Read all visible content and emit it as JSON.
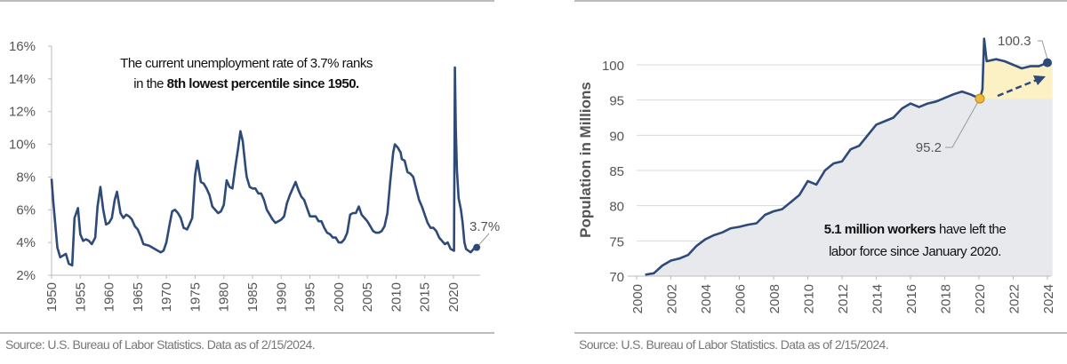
{
  "colors": {
    "line": "#2e4a78",
    "gray_fill": "#e8e9ed",
    "yellow_fill": "#fcf1c4",
    "marker_gold": "#f0b83a",
    "grid": "#d9d9d9"
  },
  "chart_data": [
    {
      "type": "line",
      "xlim": [
        1950,
        2024
      ],
      "ylim": [
        2,
        16
      ],
      "y_ticks": [
        "2%",
        "4%",
        "6%",
        "8%",
        "10%",
        "12%",
        "14%",
        "16%"
      ],
      "x_ticks": [
        "1950",
        "1955",
        "1960",
        "1965",
        "1970",
        "1975",
        "1980",
        "1985",
        "1990",
        "1995",
        "2000",
        "2005",
        "2010",
        "2015",
        "2020"
      ],
      "grid": false,
      "annotation_line1": "The current unemployment rate of 3.7% ranks",
      "annotation_line2_prefix": "in the ",
      "annotation_line2_bold": "8th lowest percentile since 1950.",
      "end_label": "3.7%",
      "x": [
        1950,
        1950.3,
        1951,
        1951.5,
        1952,
        1952.5,
        1953,
        1953.6,
        1954,
        1954.6,
        1955,
        1955.5,
        1956,
        1956.5,
        1957,
        1957.6,
        1958,
        1958.5,
        1959,
        1959.5,
        1960,
        1960.5,
        1961,
        1961.4,
        1962,
        1962.5,
        1963,
        1963.5,
        1964,
        1964.5,
        1965,
        1965.5,
        1966,
        1967,
        1968,
        1969,
        1969.5,
        1970,
        1970.5,
        1971,
        1971.5,
        1972,
        1972.5,
        1973,
        1973.6,
        1974,
        1974.5,
        1975,
        1975.4,
        1976,
        1976.5,
        1977,
        1977.5,
        1978,
        1979,
        1979.5,
        1980,
        1980.5,
        1981,
        1981.5,
        1982,
        1982.5,
        1982.9,
        1983.3,
        1983.8,
        1984,
        1984.5,
        1985,
        1985.5,
        1986,
        1986.5,
        1987,
        1987.5,
        1988,
        1988.5,
        1989,
        1989.5,
        1990,
        1990.5,
        1991,
        1991.5,
        1992,
        1992.5,
        1993,
        1993.5,
        1994,
        1994.5,
        1995,
        1995.5,
        1996,
        1996.5,
        1997,
        1997.5,
        1998,
        1998.5,
        1999,
        1999.5,
        2000,
        2000.5,
        2001,
        2001.5,
        2002,
        2002.5,
        2003,
        2003.5,
        2004,
        2004.5,
        2005,
        2005.5,
        2006,
        2006.5,
        2007,
        2007.5,
        2008,
        2008.5,
        2009,
        2009.5,
        2009.8,
        2010.3,
        2010.8,
        2011,
        2011.5,
        2012,
        2012.5,
        2013,
        2013.5,
        2014,
        2014.5,
        2015,
        2015.5,
        2016,
        2016.5,
        2017,
        2017.5,
        2018,
        2018.5,
        2019,
        2019.5,
        2020.1,
        2020.25,
        2020.4,
        2020.6,
        2020.9,
        2021.3,
        2021.6,
        2021.9,
        2022.2,
        2022.6,
        2023,
        2023.5,
        2023.9,
        2024.05
      ],
      "y": [
        7.9,
        6.5,
        3.7,
        3.1,
        3.2,
        3.3,
        2.7,
        2.6,
        5.5,
        6.1,
        4.5,
        4.1,
        4.2,
        4.1,
        3.9,
        4.3,
        6.2,
        7.4,
        6.0,
        5.1,
        5.2,
        5.5,
        6.6,
        7.1,
        5.8,
        5.5,
        5.7,
        5.6,
        5.4,
        5.0,
        4.8,
        4.4,
        3.9,
        3.8,
        3.6,
        3.4,
        3.5,
        4.0,
        5.0,
        5.9,
        6.0,
        5.8,
        5.5,
        4.9,
        4.8,
        5.1,
        5.5,
        8.1,
        9.0,
        7.7,
        7.6,
        7.3,
        6.9,
        6.2,
        5.8,
        5.9,
        6.3,
        7.8,
        7.4,
        7.3,
        8.6,
        9.8,
        10.8,
        10.2,
        8.5,
        8.0,
        7.4,
        7.3,
        7.3,
        7.0,
        7.0,
        6.6,
        6.0,
        5.7,
        5.4,
        5.2,
        5.3,
        5.4,
        5.6,
        6.4,
        6.9,
        7.3,
        7.7,
        7.2,
        6.8,
        6.6,
        6.1,
        5.6,
        5.6,
        5.6,
        5.3,
        5.3,
        4.9,
        4.6,
        4.5,
        4.3,
        4.3,
        4.0,
        4.0,
        4.2,
        4.6,
        5.7,
        5.8,
        5.8,
        6.2,
        5.7,
        5.5,
        5.3,
        5.0,
        4.7,
        4.6,
        4.6,
        4.7,
        5.0,
        5.8,
        7.8,
        9.5,
        10.0,
        9.8,
        9.5,
        9.1,
        9.0,
        8.3,
        8.2,
        8.0,
        7.3,
        6.6,
        6.2,
        5.7,
        5.2,
        4.9,
        4.9,
        4.7,
        4.3,
        4.1,
        3.9,
        4.0,
        3.6,
        3.5,
        14.7,
        11.0,
        8.4,
        6.7,
        6.0,
        5.2,
        4.0,
        3.6,
        3.5,
        3.4,
        3.6,
        3.7,
        3.7
      ]
    },
    {
      "type": "area",
      "ylabel": "Population in Millions",
      "xlim": [
        2000,
        2024
      ],
      "ylim": [
        70,
        103
      ],
      "y_ticks": [
        "70",
        "75",
        "80",
        "85",
        "90",
        "95",
        "100"
      ],
      "x_ticks": [
        "2000",
        "2002",
        "2004",
        "2006",
        "2008",
        "2010",
        "2012",
        "2014",
        "2016",
        "2018",
        "2020",
        "2022",
        "2024"
      ],
      "grid": true,
      "jan2020_label": "95.2",
      "latest_label": "100.3",
      "annotation_line1_bold": "5.1 million workers",
      "annotation_line1_rest": " have left the",
      "annotation_line2": "labor force since January 2020.",
      "x": [
        2000.5,
        2001,
        2001.5,
        2002,
        2002.5,
        2003,
        2003.5,
        2004,
        2004.5,
        2005,
        2005.5,
        2006,
        2006.5,
        2007,
        2007.5,
        2008,
        2008.5,
        2009,
        2009.5,
        2010,
        2010.5,
        2011,
        2011.5,
        2012,
        2012.5,
        2013,
        2013.5,
        2014,
        2014.5,
        2015,
        2015.5,
        2016,
        2016.5,
        2017,
        2017.5,
        2018,
        2018.5,
        2019,
        2019.5,
        2020.05,
        2020.2,
        2020.3,
        2020.45,
        2021,
        2021.5,
        2022,
        2022.5,
        2023,
        2023.5,
        2024.0
      ],
      "y": [
        70.2,
        70.4,
        71.5,
        72.2,
        72.5,
        73.0,
        74.3,
        75.2,
        75.8,
        76.2,
        76.8,
        77.0,
        77.3,
        77.5,
        78.7,
        79.2,
        79.5,
        80.5,
        81.5,
        83.5,
        83.0,
        85.0,
        86.0,
        86.3,
        88.0,
        88.5,
        90.0,
        91.5,
        92.0,
        92.5,
        93.8,
        94.5,
        94.0,
        94.5,
        94.8,
        95.3,
        95.8,
        96.2,
        95.8,
        95.2,
        96.5,
        103.7,
        100.5,
        100.8,
        100.5,
        100.0,
        99.5,
        99.8,
        99.8,
        100.3
      ]
    }
  ],
  "footer": {
    "left_source": "Source: U.S. Bureau of Labor Statistics. Data as of 2/15/2024.",
    "right_source": "Source: U.S. Bureau of Labor Statistics. Data as of 2/15/2024."
  }
}
